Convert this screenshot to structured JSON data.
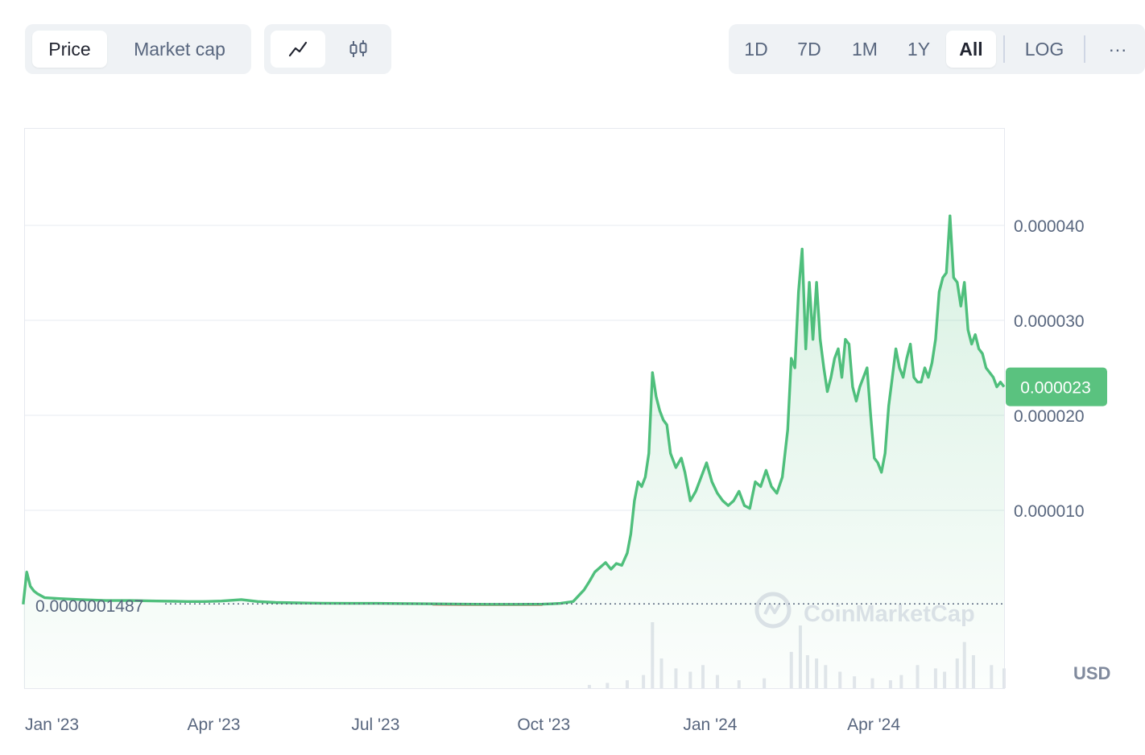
{
  "tabs": {
    "price_label": "Price",
    "market_cap_label": "Market cap"
  },
  "chart_type_icons": [
    "line-chart-icon",
    "candlestick-icon"
  ],
  "range": {
    "d1": "1D",
    "d7": "7D",
    "m1": "1M",
    "y1": "1Y",
    "all": "All",
    "log": "LOG",
    "more": "···"
  },
  "currency": "USD",
  "watermark": "CoinMarketCap",
  "colors": {
    "line": "#4fbf7c",
    "below_open": "#ea3943",
    "current_badge": "#5ac27f",
    "grid": "#eff2f5"
  },
  "chart_data": {
    "type": "area",
    "title": "",
    "xlabel": "",
    "ylabel": "",
    "ylim": [
      0,
      5e-05
    ],
    "y_ticks": [
      1e-05,
      2e-05,
      3e-05,
      4e-05
    ],
    "y_tick_labels": [
      "0.000010",
      "0.000020",
      "0.000030",
      "0.000040"
    ],
    "x_tick_labels": [
      {
        "date": "2023-01-01",
        "label": "Jan '23"
      },
      {
        "date": "2023-04-01",
        "label": "Apr '23"
      },
      {
        "date": "2023-07-01",
        "label": "Jul '23"
      },
      {
        "date": "2023-10-01",
        "label": "Oct '23"
      },
      {
        "date": "2024-01-01",
        "label": "Jan '24"
      },
      {
        "date": "2024-04-01",
        "label": "Apr '24"
      }
    ],
    "x_range": [
      "2023-01-01",
      "2024-06-27"
    ],
    "open_price": 1.487e-07,
    "open_price_label": "0.0000001487",
    "current_price": 2.3e-05,
    "current_price_label": "0.000023",
    "grid": true,
    "series": [
      {
        "x": [
          "2022-12-31",
          "2023-01-02",
          "2023-01-04",
          "2023-01-06",
          "2023-01-08",
          "2023-01-12",
          "2023-01-20",
          "2023-02-01",
          "2023-02-15",
          "2023-03-01",
          "2023-03-15",
          "2023-03-25",
          "2023-04-01",
          "2023-04-10",
          "2023-04-20",
          "2023-05-01",
          "2023-05-10",
          "2023-05-20",
          "2023-06-01",
          "2023-06-15",
          "2023-07-01",
          "2023-07-15",
          "2023-08-01",
          "2023-08-15",
          "2023-09-01",
          "2023-09-15",
          "2023-10-01",
          "2023-10-15",
          "2023-10-20",
          "2023-10-25",
          "2023-11-01",
          "2023-11-03",
          "2023-11-05",
          "2023-11-07",
          "2023-11-10",
          "2023-11-13",
          "2023-11-16",
          "2023-11-19",
          "2023-11-22",
          "2023-11-25",
          "2023-11-28",
          "2023-12-01",
          "2023-12-03",
          "2023-12-05",
          "2023-12-07",
          "2023-12-09",
          "2023-12-11",
          "2023-12-13",
          "2023-12-15",
          "2023-12-17",
          "2023-12-19",
          "2023-12-21",
          "2023-12-23",
          "2023-12-25",
          "2023-12-28",
          "2023-12-31",
          "2024-01-02",
          "2024-01-05",
          "2024-01-08",
          "2024-01-11",
          "2024-01-14",
          "2024-01-17",
          "2024-01-20",
          "2024-01-23",
          "2024-01-26",
          "2024-01-29",
          "2024-02-01",
          "2024-02-04",
          "2024-02-07",
          "2024-02-10",
          "2024-02-13",
          "2024-02-16",
          "2024-02-19",
          "2024-02-22",
          "2024-02-25",
          "2024-02-28",
          "2024-03-01",
          "2024-03-03",
          "2024-03-05",
          "2024-03-07",
          "2024-03-09",
          "2024-03-11",
          "2024-03-13",
          "2024-03-15",
          "2024-03-17",
          "2024-03-19",
          "2024-03-21",
          "2024-03-23",
          "2024-03-25",
          "2024-03-27",
          "2024-03-29",
          "2024-03-31",
          "2024-04-02",
          "2024-04-04",
          "2024-04-06",
          "2024-04-08",
          "2024-04-10",
          "2024-04-12",
          "2024-04-14",
          "2024-04-16",
          "2024-04-18",
          "2024-04-20",
          "2024-04-22",
          "2024-04-24",
          "2024-04-26",
          "2024-04-28",
          "2024-04-30",
          "2024-05-02",
          "2024-05-04",
          "2024-05-06",
          "2024-05-08",
          "2024-05-10",
          "2024-05-12",
          "2024-05-14",
          "2024-05-16",
          "2024-05-18",
          "2024-05-20",
          "2024-05-22",
          "2024-05-24",
          "2024-05-26",
          "2024-05-28",
          "2024-05-30",
          "2024-06-01",
          "2024-06-03",
          "2024-06-05",
          "2024-06-07",
          "2024-06-09",
          "2024-06-11",
          "2024-06-13",
          "2024-06-15",
          "2024-06-17",
          "2024-06-19",
          "2024-06-21",
          "2024-06-23",
          "2024-06-25",
          "2024-06-27"
        ],
        "y": [
          1e-07,
          3.5e-06,
          2e-06,
          1.5e-06,
          1.2e-06,
          8e-07,
          7e-07,
          6e-07,
          5e-07,
          5e-07,
          4.5e-07,
          4.2e-07,
          4e-07,
          4e-07,
          4.5e-07,
          6e-07,
          4e-07,
          3e-07,
          2.5e-07,
          2.2e-07,
          2e-07,
          2e-07,
          1.8e-07,
          1.5e-07,
          1.2e-07,
          1e-07,
          1e-07,
          1.2e-07,
          1.5e-07,
          2e-07,
          4e-07,
          8e-07,
          1.2e-06,
          1.6e-06,
          2.5e-06,
          3.5e-06,
          4e-06,
          4.5e-06,
          3.8e-06,
          4.4e-06,
          4.2e-06,
          5.5e-06,
          7.5e-06,
          1.1e-05,
          1.3e-05,
          1.25e-05,
          1.35e-05,
          1.6e-05,
          2.45e-05,
          2.2e-05,
          2.05e-05,
          1.95e-05,
          1.9e-05,
          1.6e-05,
          1.45e-05,
          1.55e-05,
          1.4e-05,
          1.1e-05,
          1.2e-05,
          1.35e-05,
          1.5e-05,
          1.3e-05,
          1.18e-05,
          1.1e-05,
          1.05e-05,
          1.1e-05,
          1.2e-05,
          1.05e-05,
          1.02e-05,
          1.3e-05,
          1.25e-05,
          1.42e-05,
          1.25e-05,
          1.18e-05,
          1.35e-05,
          1.85e-05,
          2.6e-05,
          2.5e-05,
          3.3e-05,
          3.75e-05,
          2.7e-05,
          3.4e-05,
          2.8e-05,
          3.4e-05,
          2.8e-05,
          2.5e-05,
          2.25e-05,
          2.4e-05,
          2.6e-05,
          2.7e-05,
          2.4e-05,
          2.8e-05,
          2.75e-05,
          2.3e-05,
          2.15e-05,
          2.3e-05,
          2.4e-05,
          2.5e-05,
          2e-05,
          1.55e-05,
          1.5e-05,
          1.4e-05,
          1.6e-05,
          2.1e-05,
          2.4e-05,
          2.7e-05,
          2.5e-05,
          2.4e-05,
          2.6e-05,
          2.75e-05,
          2.4e-05,
          2.35e-05,
          2.35e-05,
          2.5e-05,
          2.4e-05,
          2.55e-05,
          2.8e-05,
          3.3e-05,
          3.45e-05,
          3.5e-05,
          4.1e-05,
          3.45e-05,
          3.4e-05,
          3.15e-05,
          3.4e-05,
          2.9e-05,
          2.75e-05,
          2.85e-05,
          2.7e-05,
          2.65e-05,
          2.5e-05,
          2.45e-05,
          2.4e-05,
          2.3e-05,
          2.35e-05,
          2.3e-05
        ]
      }
    ],
    "volume": {
      "x": [
        "2023-11-10",
        "2023-11-20",
        "2023-12-01",
        "2023-12-10",
        "2023-12-15",
        "2023-12-20",
        "2023-12-28",
        "2024-01-05",
        "2024-01-12",
        "2024-01-20",
        "2024-02-01",
        "2024-02-15",
        "2024-03-01",
        "2024-03-06",
        "2024-03-10",
        "2024-03-15",
        "2024-03-20",
        "2024-03-28",
        "2024-04-05",
        "2024-04-15",
        "2024-04-25",
        "2024-05-01",
        "2024-05-10",
        "2024-05-20",
        "2024-05-25",
        "2024-06-01",
        "2024-06-05",
        "2024-06-10",
        "2024-06-20",
        "2024-06-27"
      ],
      "values": [
        0.05,
        0.08,
        0.12,
        0.2,
        1.0,
        0.45,
        0.3,
        0.25,
        0.35,
        0.2,
        0.12,
        0.15,
        0.55,
        0.95,
        0.5,
        0.45,
        0.35,
        0.25,
        0.18,
        0.15,
        0.12,
        0.2,
        0.35,
        0.3,
        0.25,
        0.45,
        0.7,
        0.5,
        0.35,
        0.3
      ]
    }
  }
}
